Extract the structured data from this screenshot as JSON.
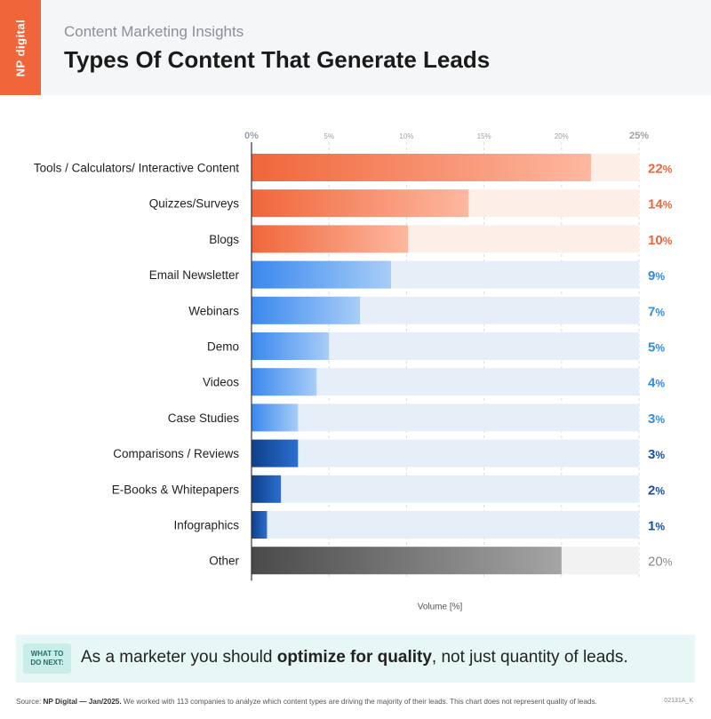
{
  "header": {
    "logo_text": "NP digital",
    "subtitle": "Content Marketing Insights",
    "title": "Types Of Content That Generate Leads"
  },
  "colors": {
    "brand_orange": "#f0663a",
    "blue": "#3d8ef0",
    "dark_blue": "#1550a8",
    "gray": "#555555",
    "track_orange": "#fdeee8",
    "track_blue": "#e6eef8",
    "track_gray": "#f2f2f2"
  },
  "chart_data": {
    "type": "bar",
    "orientation": "horizontal",
    "xlabel": "Volume [%]",
    "xlim": [
      0,
      25
    ],
    "x_ticks": [
      "0%",
      "5%",
      "10%",
      "15%",
      "20%",
      "25%"
    ],
    "grid": true,
    "categories": [
      "Tools / Calculators/ Interactive Content",
      "Quizzes/Surveys",
      "Blogs",
      "Email Newsletter",
      "Webinars",
      "Demo",
      "Videos",
      "Case Studies",
      "Comparisons / Reviews",
      "E-Books & Whitepapers",
      "Infographics",
      "Other"
    ],
    "values": [
      22,
      14,
      10,
      9,
      7,
      5,
      4,
      3,
      3,
      2,
      1,
      20
    ],
    "value_labels": [
      "22%",
      "14%",
      "10%",
      "9%",
      "7%",
      "5%",
      "4%",
      "3%",
      "3%",
      "2%",
      "1%",
      "20%"
    ],
    "bar_values_drawn": [
      21.9,
      14.0,
      10.1,
      9.0,
      7.0,
      5.0,
      4.2,
      3.0,
      3.0,
      1.9,
      1.0,
      20.0
    ],
    "color_groups": [
      "orange",
      "orange",
      "orange",
      "blue",
      "blue",
      "blue",
      "blue",
      "blue",
      "darkblue",
      "darkblue",
      "darkblue",
      "gray"
    ]
  },
  "callout": {
    "tag_line1": "WHAT TO",
    "tag_line2": "DO NEXT:",
    "text_before": "As a marketer you should ",
    "text_bold": "optimize for quality",
    "text_after": ", not just quantity of leads."
  },
  "footer": {
    "source_label": "Source:",
    "source_bold": "NP Digital — Jan/2025.",
    "source_text": " We worked with 113 companies to analyze which content types are driving the majority of their leads. This chart does not represent quality of leads.",
    "code": "02131A_K"
  }
}
